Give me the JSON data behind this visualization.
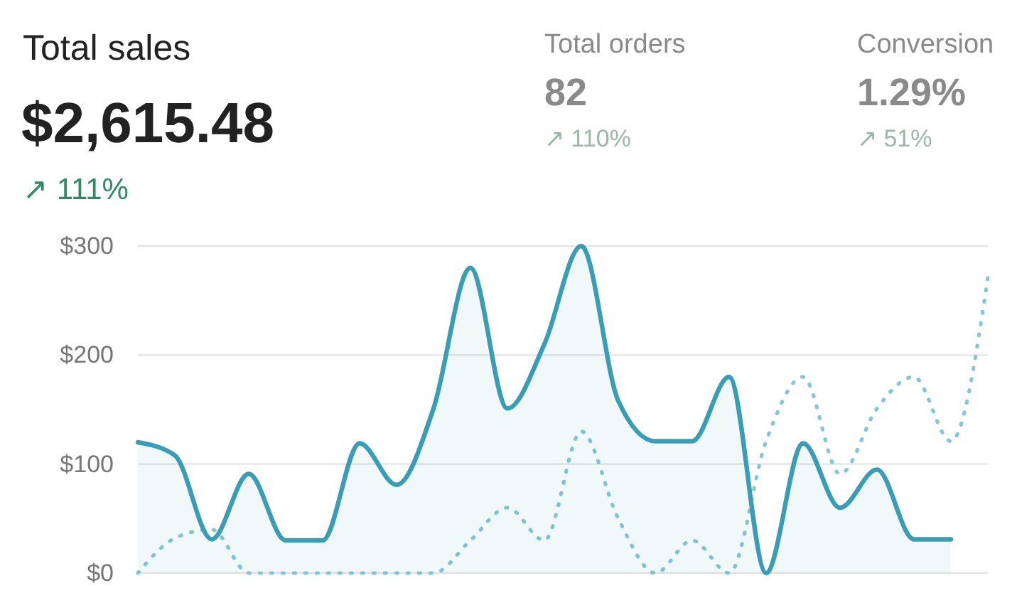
{
  "chart_data": {
    "type": "line",
    "title": "Total sales",
    "subtitle": "$2,615.48",
    "annotations": [
      "↗ 111%",
      "Total orders",
      "82",
      "↗ 110%",
      "Conversion",
      "1.29%",
      "↗ 51%"
    ],
    "categories": [
      null,
      null,
      null,
      null,
      null,
      null,
      null,
      null,
      null,
      null,
      null,
      null,
      null,
      null,
      null,
      null,
      null,
      null,
      null,
      null,
      null,
      null,
      null,
      null
    ],
    "series": [
      {
        "type": "area",
        "color": "#3a9db3",
        "line_style": "solid",
        "values": [
          120,
          108,
          31,
          91,
          30,
          30,
          119,
          81,
          151,
          280,
          151,
          210,
          300,
          158,
          121,
          121,
          180,
          0,
          119,
          60,
          95,
          31,
          31,
          null
        ]
      },
      {
        "type": "line",
        "color": "#86c6d1",
        "line_style": "dotted",
        "values": [
          0,
          32,
          40,
          0,
          0,
          0,
          0,
          0,
          0,
          30,
          60,
          30,
          130,
          50,
          0,
          30,
          0,
          121,
          180,
          91,
          151,
          180,
          121,
          271
        ]
      }
    ],
    "ylim": [
      0,
      300
    ],
    "yticks": [
      {
        "value": 0,
        "label": "$0"
      },
      {
        "value": 100,
        "label": "$100"
      },
      {
        "value": 200,
        "label": "$200"
      },
      {
        "value": 300,
        "label": "$300"
      }
    ],
    "grid": "y",
    "marker": "none"
  }
}
